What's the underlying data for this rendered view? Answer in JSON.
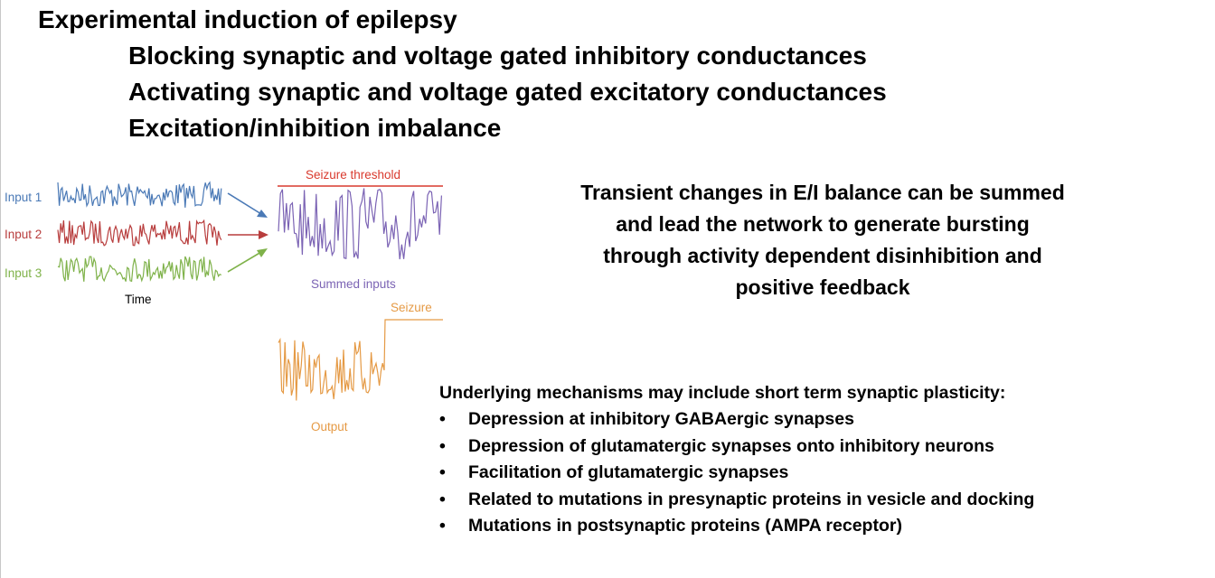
{
  "slide": {
    "title": "Experimental induction of epilepsy",
    "subpoints": [
      "Blocking synaptic and voltage gated inhibitory conductances",
      "Activating synaptic and voltage gated excitatory conductances",
      "Excitation/inhibition imbalance"
    ],
    "callout_lines": [
      "Transient changes in E/I balance can be summed",
      "and lead the network to generate bursting",
      "through activity dependent disinhibition and",
      "positive feedback"
    ],
    "mechanisms": {
      "heading": "Underlying mechanisms may include short term synaptic plasticity:",
      "bullet_glyph": "•",
      "items": [
        "Depression at inhibitory GABAergic synapses",
        "Depression of glutamatergic synapses onto inhibitory neurons",
        "Facilitation of glutamatergic synapses",
        "Related to mutations in presynaptic proteins in vesicle and docking",
        "Mutations in postsynaptic proteins (AMPA receptor)"
      ]
    }
  },
  "figure": {
    "inputs": [
      {
        "label": "Input 1",
        "color": "#4a79b6"
      },
      {
        "label": "Input 2",
        "color": "#b83d3d"
      },
      {
        "label": "Input 3",
        "color": "#7fb24a"
      }
    ],
    "time_label": "Time",
    "threshold_label": "Seizure threshold",
    "threshold_color": "#d93a2e",
    "summed_label": "Summed inputs",
    "summed_color": "#7b63b4",
    "seizure_label": "Seizure",
    "output_label": "Output",
    "output_color": "#e59a45",
    "arrow_icon": "arrow-right-icon"
  }
}
